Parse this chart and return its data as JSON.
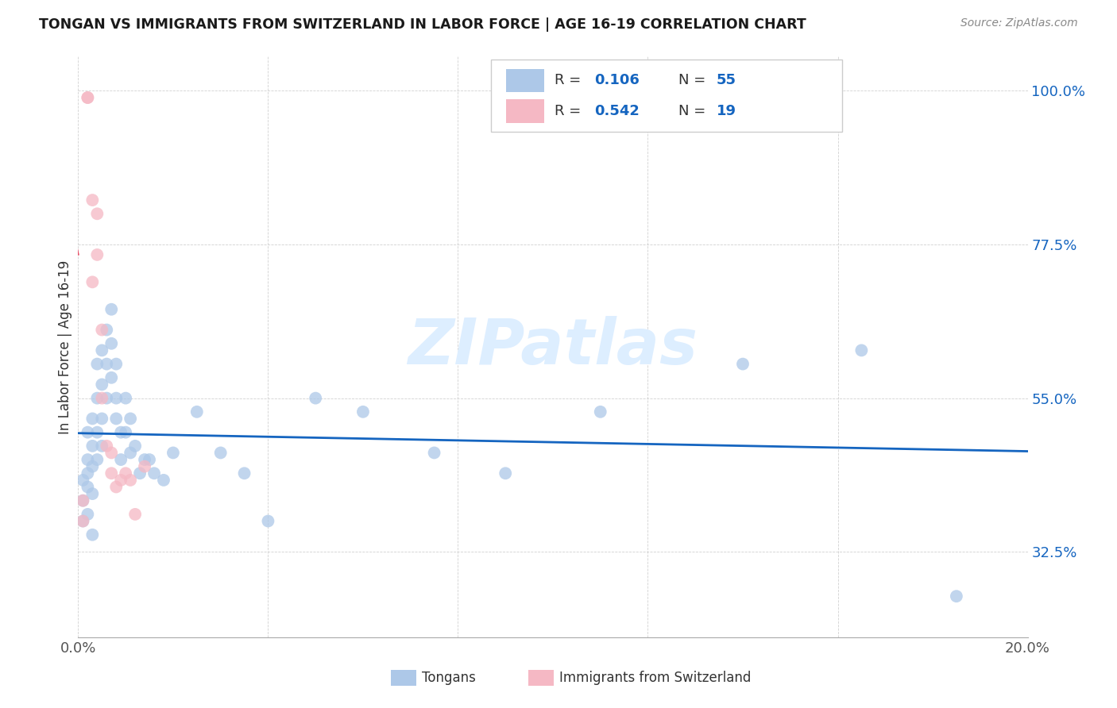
{
  "title": "TONGAN VS IMMIGRANTS FROM SWITZERLAND IN LABOR FORCE | AGE 16-19 CORRELATION CHART",
  "source": "Source: ZipAtlas.com",
  "ylabel": "In Labor Force | Age 16-19",
  "xlim": [
    0.0,
    0.2
  ],
  "ylim": [
    0.2,
    1.05
  ],
  "xticks": [
    0.0,
    0.04,
    0.08,
    0.12,
    0.16,
    0.2
  ],
  "xticklabels": [
    "0.0%",
    "",
    "",
    "",
    "",
    "20.0%"
  ],
  "ytick_positions": [
    0.325,
    0.55,
    0.775,
    1.0
  ],
  "ytick_labels": [
    "32.5%",
    "55.0%",
    "77.5%",
    "100.0%"
  ],
  "blue_color": "#adc8e8",
  "pink_color": "#f5b8c4",
  "trend_blue": "#1565c0",
  "trend_pink": "#e8546a",
  "watermark_color": "#ddeeff",
  "legend_R_blue": "0.106",
  "legend_N_blue": "55",
  "legend_R_pink": "0.542",
  "legend_N_pink": "19",
  "tongans_x": [
    0.001,
    0.001,
    0.001,
    0.002,
    0.002,
    0.002,
    0.002,
    0.002,
    0.003,
    0.003,
    0.003,
    0.003,
    0.003,
    0.004,
    0.004,
    0.004,
    0.004,
    0.005,
    0.005,
    0.005,
    0.005,
    0.006,
    0.006,
    0.006,
    0.007,
    0.007,
    0.007,
    0.008,
    0.008,
    0.008,
    0.009,
    0.009,
    0.01,
    0.01,
    0.011,
    0.011,
    0.012,
    0.013,
    0.014,
    0.015,
    0.016,
    0.018,
    0.02,
    0.025,
    0.03,
    0.035,
    0.04,
    0.05,
    0.06,
    0.075,
    0.09,
    0.11,
    0.14,
    0.165,
    0.185
  ],
  "tongans_y": [
    0.4,
    0.43,
    0.37,
    0.5,
    0.46,
    0.42,
    0.38,
    0.44,
    0.52,
    0.48,
    0.45,
    0.41,
    0.35,
    0.6,
    0.55,
    0.5,
    0.46,
    0.62,
    0.57,
    0.52,
    0.48,
    0.65,
    0.6,
    0.55,
    0.68,
    0.63,
    0.58,
    0.6,
    0.55,
    0.52,
    0.5,
    0.46,
    0.55,
    0.5,
    0.52,
    0.47,
    0.48,
    0.44,
    0.46,
    0.46,
    0.44,
    0.43,
    0.47,
    0.53,
    0.47,
    0.44,
    0.37,
    0.55,
    0.53,
    0.47,
    0.44,
    0.53,
    0.6,
    0.62,
    0.26
  ],
  "swiss_x": [
    0.001,
    0.001,
    0.002,
    0.002,
    0.003,
    0.003,
    0.004,
    0.004,
    0.005,
    0.005,
    0.006,
    0.007,
    0.007,
    0.008,
    0.009,
    0.01,
    0.011,
    0.012,
    0.014
  ],
  "swiss_y": [
    0.37,
    0.4,
    0.99,
    0.99,
    0.72,
    0.84,
    0.82,
    0.76,
    0.65,
    0.55,
    0.48,
    0.47,
    0.44,
    0.42,
    0.43,
    0.44,
    0.43,
    0.38,
    0.45
  ]
}
